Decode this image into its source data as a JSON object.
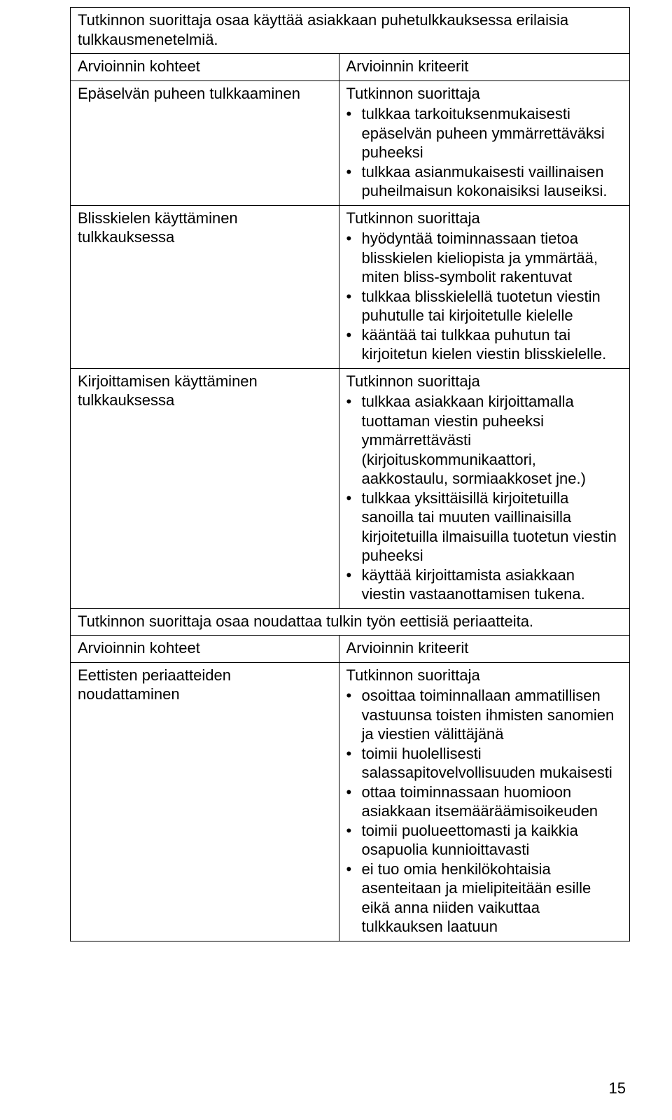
{
  "page_number": "15",
  "sections": [
    {
      "heading": "Tutkinnon suorittaja osaa käyttää asiakkaan puhetulkkauksessa erilaisia tulkkausmenetelmiä.",
      "col_headers": [
        "Arvioinnin kohteet",
        "Arvioinnin kriteerit"
      ],
      "rows": [
        {
          "left": "Epäselvän puheen tulkkaaminen",
          "right_intro": "Tutkinnon suorittaja",
          "right_bullets": [
            "tulkkaa tarkoituksenmukaisesti epäselvän puheen ymmärrettäväksi puheeksi",
            "tulkkaa asianmukaisesti vaillinaisen puheilmaisun kokonaisiksi lauseiksi."
          ]
        },
        {
          "left": "Blisskielen käyttäminen tulkkauksessa",
          "right_intro": "Tutkinnon suorittaja",
          "right_bullets": [
            "hyödyntää toiminnassaan tietoa blisskielen kieliopista ja ymmärtää, miten bliss-symbolit rakentuvat",
            "tulkkaa blisskielellä tuotetun viestin puhutulle tai kirjoitetulle kielelle",
            "kääntää tai tulkkaa puhutun tai kirjoitetun kielen viestin blisskielelle."
          ]
        },
        {
          "left": "Kirjoittamisen käyttäminen tulkkauksessa",
          "right_intro": "Tutkinnon suorittaja",
          "right_bullets": [
            "tulkkaa asiakkaan kirjoittamalla tuottaman viestin puheeksi ymmärrettävästi (kirjoituskommunikaattori, aakkostaulu, sormiaakkoset jne.)",
            "tulkkaa yksittäisillä kirjoitetuilla sanoilla tai muuten vaillinaisilla kirjoitetuilla ilmaisuilla tuotetun viestin puheeksi",
            "käyttää kirjoittamista asiakkaan viestin vastaanottamisen tukena."
          ]
        }
      ]
    },
    {
      "heading": "Tutkinnon suorittaja osaa noudattaa tulkin työn eettisiä periaatteita.",
      "col_headers": [
        "Arvioinnin kohteet",
        "Arvioinnin kriteerit"
      ],
      "rows": [
        {
          "left": "Eettisten periaatteiden noudattaminen",
          "right_intro": "Tutkinnon suorittaja",
          "right_bullets": [
            "osoittaa toiminnallaan ammatillisen vastuunsa toisten ihmisten sanomien ja viestien välittäjänä",
            "toimii huolellisesti salassapitovelvollisuuden mukaisesti",
            "ottaa toiminnassaan huomioon asiakkaan itsemääräämisoikeuden",
            "toimii puolueettomasti ja kaikkia osapuolia kunnioittavasti",
            "ei tuo omia henkilökohtaisia asenteitaan ja mielipiteitään esille eikä anna niiden vaikuttaa tulkkauksen laatuun"
          ]
        }
      ]
    }
  ]
}
